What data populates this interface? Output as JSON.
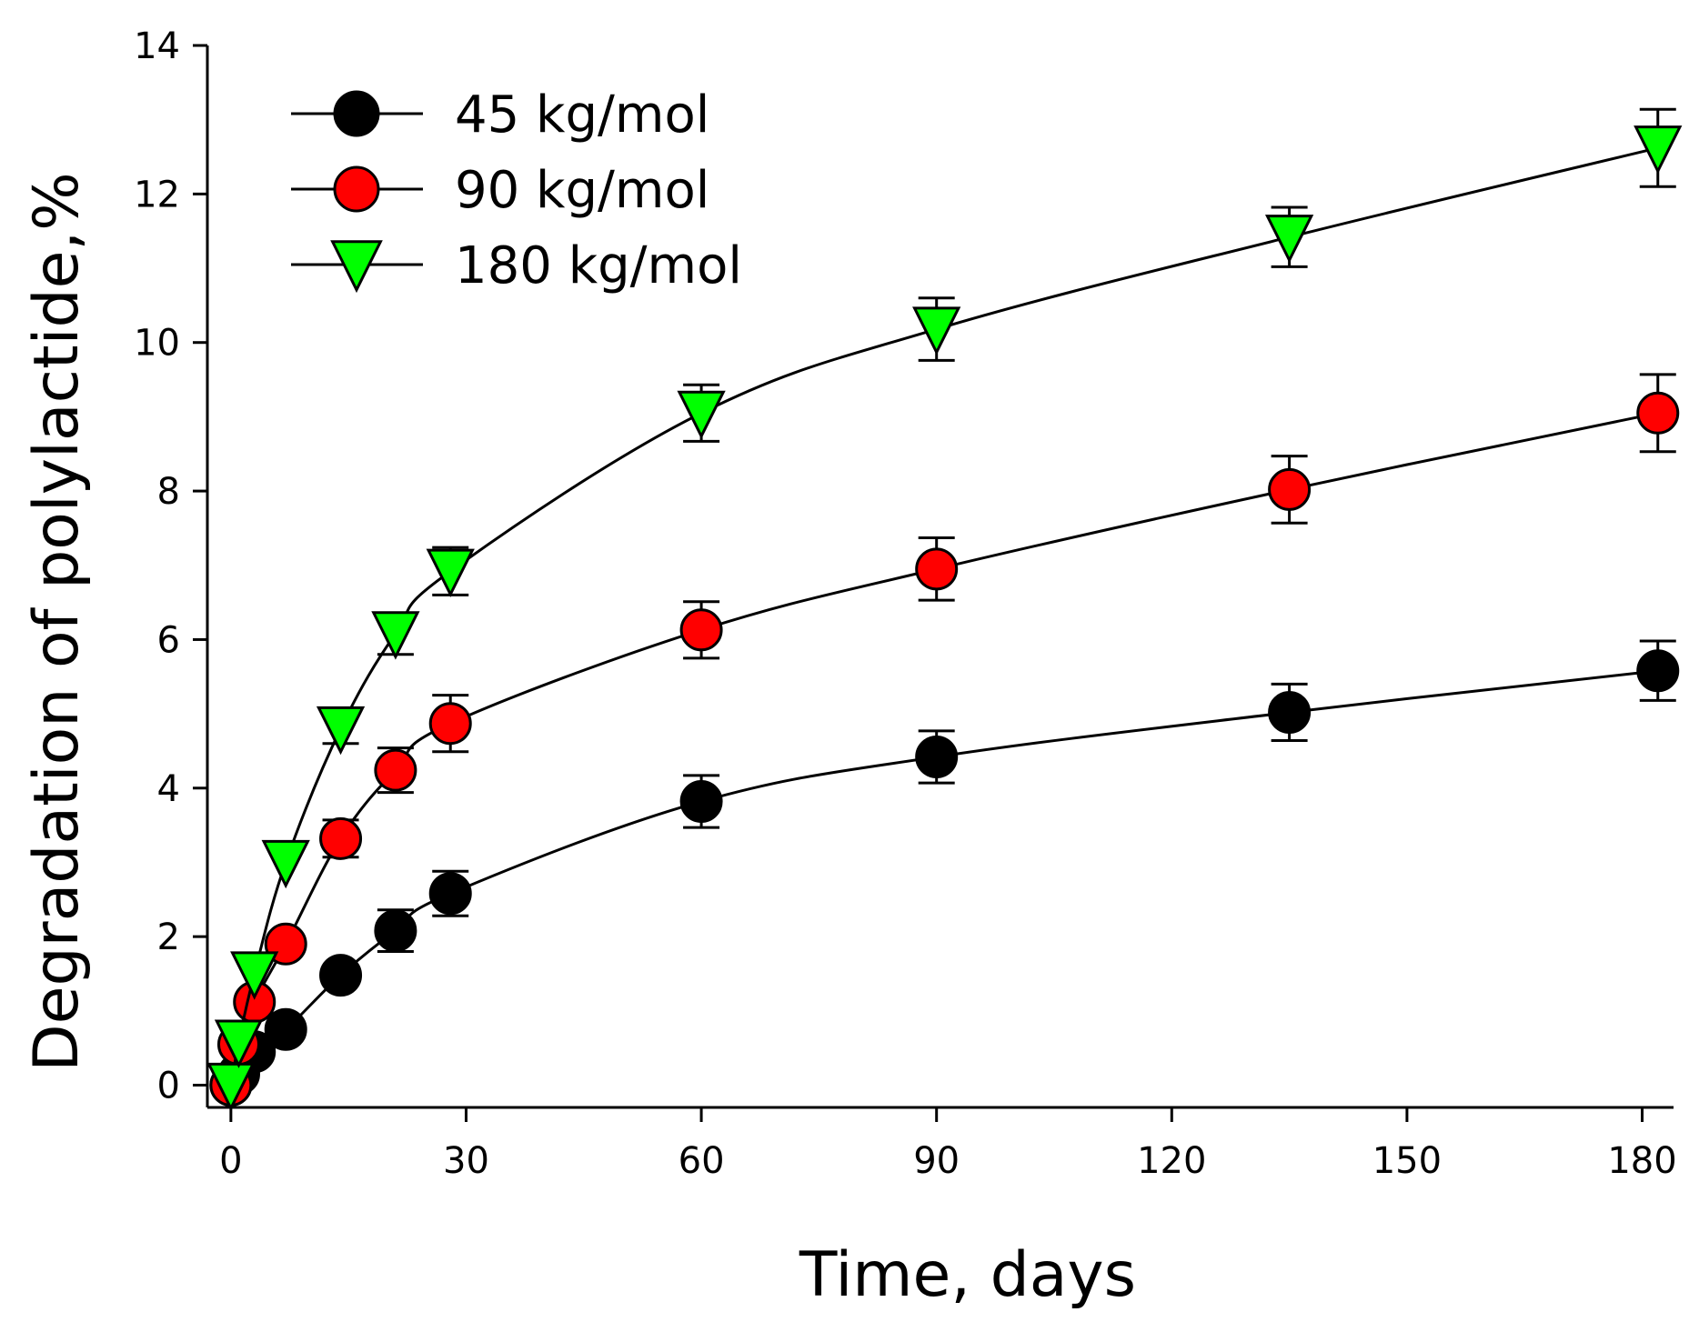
{
  "chart_data": {
    "type": "line",
    "title": "",
    "xlabel": "Time, days",
    "ylabel": "Degradation of polylactide,%",
    "xlim": [
      -3,
      184
    ],
    "ylim": [
      -0.3,
      14
    ],
    "xticks": [
      0,
      30,
      60,
      90,
      120,
      150,
      180
    ],
    "yticks": [
      0,
      2,
      4,
      6,
      8,
      10,
      12,
      14
    ],
    "legend_position": "top-left",
    "series": [
      {
        "name": "45 kg/mol",
        "marker": "circle",
        "color": "#000000",
        "x": [
          0,
          1,
          3,
          7,
          14,
          21,
          28,
          60,
          90,
          135,
          182
        ],
        "y": [
          0,
          0.15,
          0.45,
          0.75,
          1.48,
          2.08,
          2.58,
          3.82,
          4.42,
          5.02,
          5.58
        ],
        "err": [
          0,
          0,
          0,
          0,
          0,
          0.28,
          0.3,
          0.35,
          0.35,
          0.38,
          0.4
        ]
      },
      {
        "name": "90 kg/mol",
        "marker": "circle",
        "color": "#ff0000",
        "x": [
          0,
          1,
          3,
          7,
          14,
          21,
          28,
          60,
          90,
          135,
          182
        ],
        "y": [
          0,
          0.55,
          1.12,
          1.9,
          3.32,
          4.24,
          4.87,
          6.13,
          6.95,
          8.02,
          9.05
        ],
        "err": [
          0,
          0,
          0,
          0,
          0.25,
          0.3,
          0.38,
          0.38,
          0.42,
          0.45,
          0.52
        ]
      },
      {
        "name": "180 kg/mol",
        "marker": "triangle-down",
        "color": "#00ff00",
        "x": [
          0,
          1,
          3,
          7,
          14,
          21,
          28,
          60,
          90,
          135,
          182
        ],
        "y": [
          0,
          0.58,
          1.5,
          3.0,
          4.8,
          6.08,
          6.92,
          9.05,
          10.18,
          11.42,
          12.62
        ],
        "err": [
          0,
          0,
          0,
          0,
          0.2,
          0.28,
          0.32,
          0.38,
          0.42,
          0.4,
          0.52
        ]
      }
    ]
  }
}
